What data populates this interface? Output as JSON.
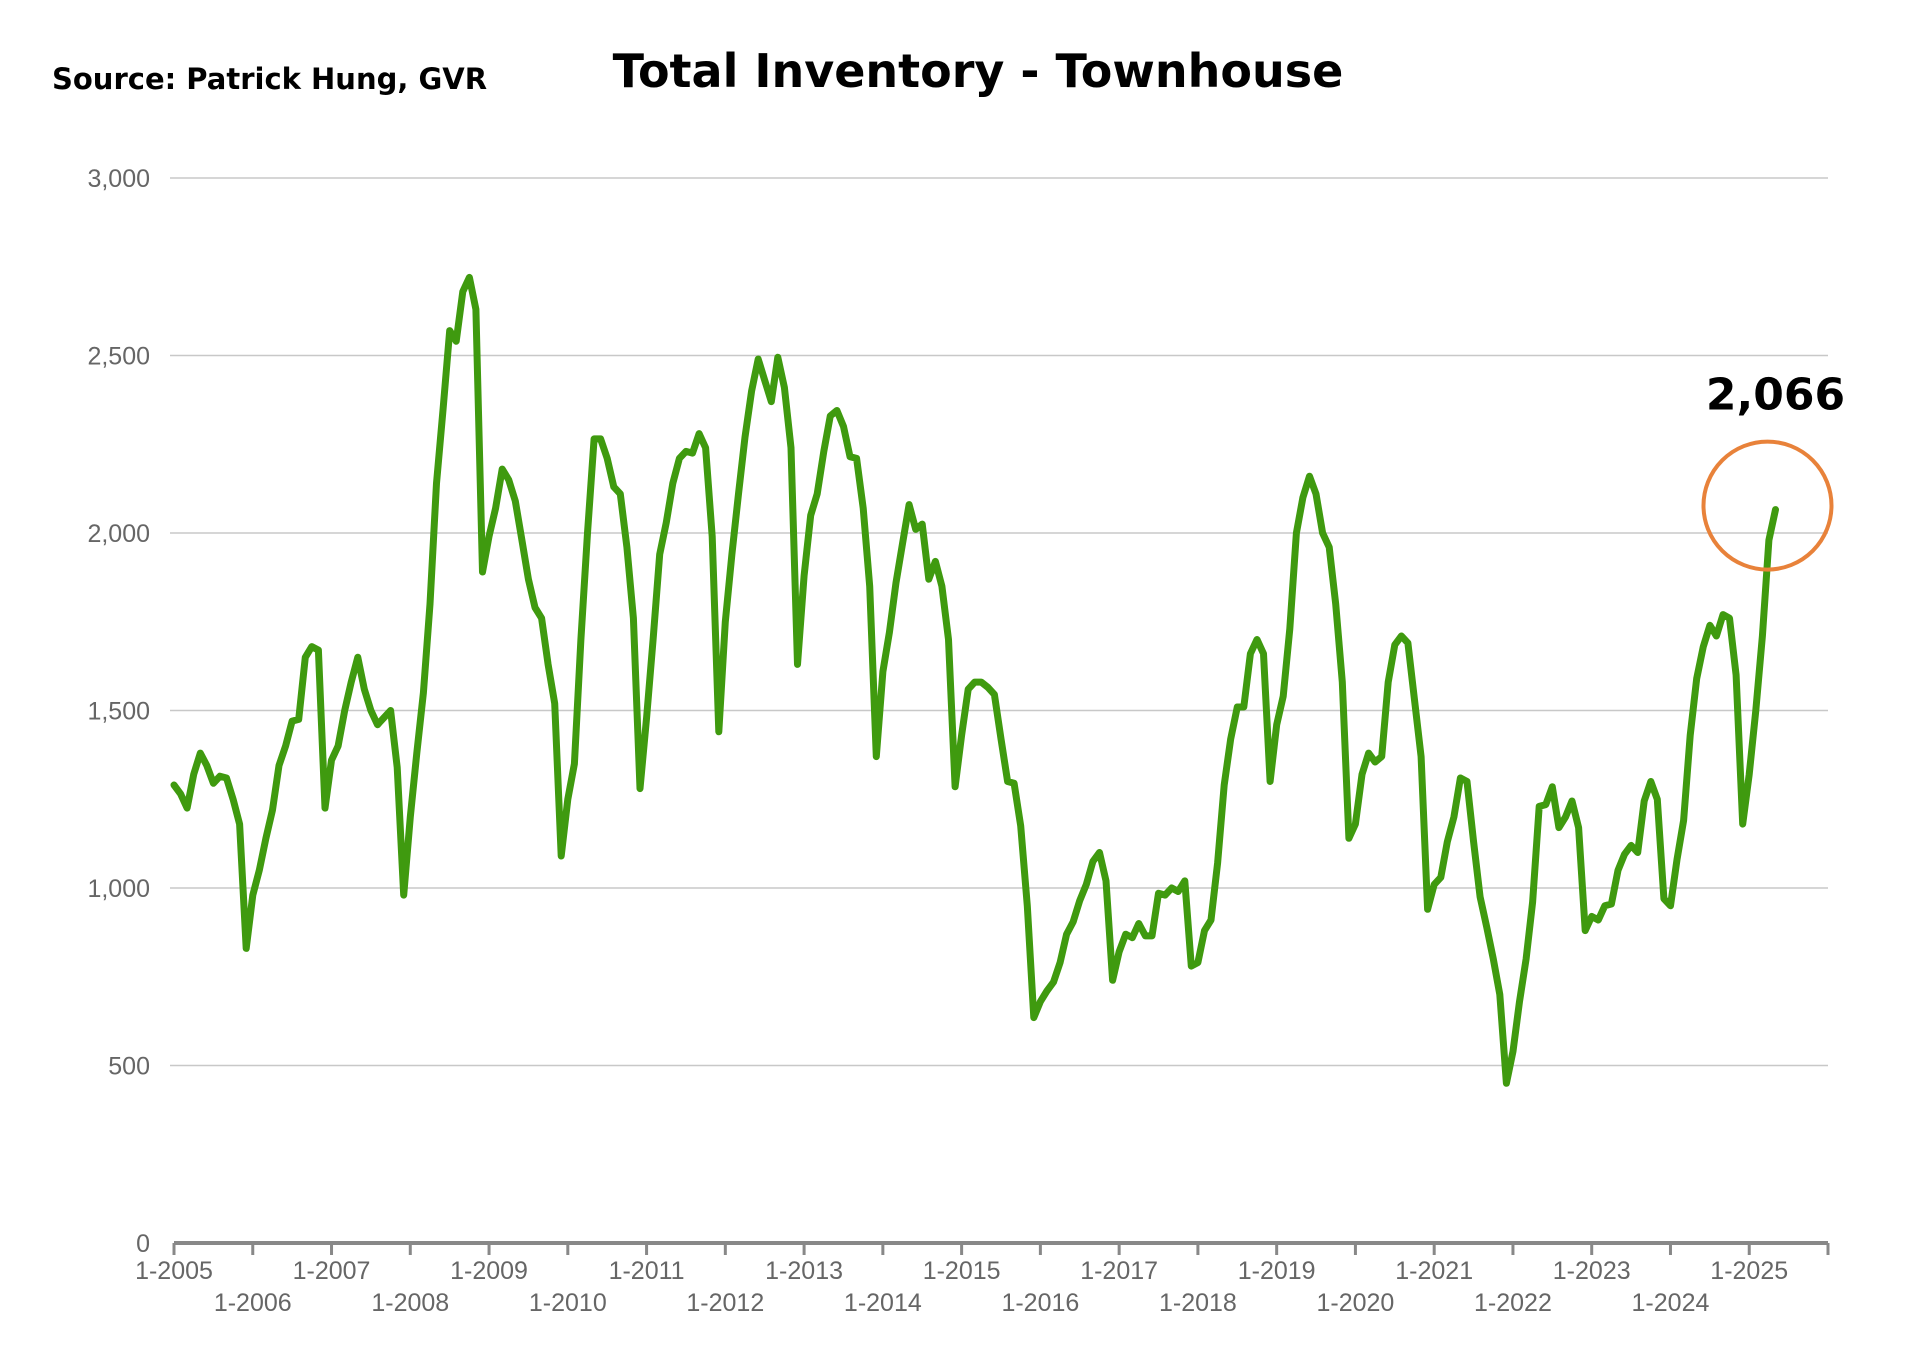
{
  "source_note": "Source:  Patrick Hung, GVR",
  "chart_data": {
    "type": "line",
    "title": "Total Inventory - Townhouse",
    "xlabel": "",
    "ylabel": "",
    "ylim": [
      0,
      3000
    ],
    "yticks": [
      0,
      500,
      1000,
      1500,
      2000,
      2500,
      3000
    ],
    "ytick_labels": [
      "0",
      "500",
      "1,000",
      "1,500",
      "2,000",
      "2,500",
      "3,000"
    ],
    "xtick_labels": [
      "1-2005",
      "1-2006",
      "1-2007",
      "1-2008",
      "1-2009",
      "1-2010",
      "1-2011",
      "1-2012",
      "1-2013",
      "1-2014",
      "1-2015",
      "1-2016",
      "1-2017",
      "1-2018",
      "1-2019",
      "1-2020",
      "1-2021",
      "1-2022",
      "1-2023",
      "1-2024",
      "1-2025"
    ],
    "grid": true,
    "line_color": "#3f9a0f",
    "highlight_color": "#e8823a",
    "series": [
      {
        "points": [
          [
            "2005-01",
            1290
          ],
          [
            "2005-02",
            1265
          ],
          [
            "2005-03",
            1225
          ],
          [
            "2005-04",
            1320
          ],
          [
            "2005-05",
            1380
          ],
          [
            "2005-06",
            1345
          ],
          [
            "2005-07",
            1295
          ],
          [
            "2005-08",
            1315
          ],
          [
            "2005-09",
            1310
          ],
          [
            "2005-10",
            1250
          ],
          [
            "2005-11",
            1180
          ],
          [
            "2005-12",
            830
          ],
          [
            "2006-01",
            980
          ],
          [
            "2006-02",
            1050
          ],
          [
            "2006-03",
            1140
          ],
          [
            "2006-04",
            1220
          ],
          [
            "2006-05",
            1345
          ],
          [
            "2006-06",
            1400
          ],
          [
            "2006-07",
            1470
          ],
          [
            "2006-08",
            1475
          ],
          [
            "2006-09",
            1650
          ],
          [
            "2006-10",
            1680
          ],
          [
            "2006-11",
            1670
          ],
          [
            "2006-12",
            1225
          ],
          [
            "2007-01",
            1360
          ],
          [
            "2007-02",
            1400
          ],
          [
            "2007-03",
            1500
          ],
          [
            "2007-04",
            1580
          ],
          [
            "2007-05",
            1650
          ],
          [
            "2007-06",
            1560
          ],
          [
            "2007-07",
            1500
          ],
          [
            "2007-08",
            1460
          ],
          [
            "2007-09",
            1480
          ],
          [
            "2007-10",
            1500
          ],
          [
            "2007-11",
            1340
          ],
          [
            "2007-12",
            980
          ],
          [
            "2008-01",
            1200
          ],
          [
            "2008-02",
            1380
          ],
          [
            "2008-03",
            1550
          ],
          [
            "2008-04",
            1800
          ],
          [
            "2008-05",
            2140
          ],
          [
            "2008-06",
            2350
          ],
          [
            "2008-07",
            2570
          ],
          [
            "2008-08",
            2540
          ],
          [
            "2008-09",
            2680
          ],
          [
            "2008-10",
            2720
          ],
          [
            "2008-11",
            2630
          ],
          [
            "2008-12",
            1890
          ],
          [
            "2009-01",
            1990
          ],
          [
            "2009-02",
            2070
          ],
          [
            "2009-03",
            2180
          ],
          [
            "2009-04",
            2150
          ],
          [
            "2009-05",
            2090
          ],
          [
            "2009-06",
            1980
          ],
          [
            "2009-07",
            1870
          ],
          [
            "2009-08",
            1790
          ],
          [
            "2009-09",
            1760
          ],
          [
            "2009-10",
            1630
          ],
          [
            "2009-11",
            1520
          ],
          [
            "2009-12",
            1090
          ],
          [
            "2010-01",
            1250
          ],
          [
            "2010-02",
            1350
          ],
          [
            "2010-03",
            1700
          ],
          [
            "2010-04",
            2000
          ],
          [
            "2010-05",
            2265
          ],
          [
            "2010-06",
            2265
          ],
          [
            "2010-07",
            2210
          ],
          [
            "2010-08",
            2130
          ],
          [
            "2010-09",
            2110
          ],
          [
            "2010-10",
            1960
          ],
          [
            "2010-11",
            1760
          ],
          [
            "2010-12",
            1280
          ],
          [
            "2011-01",
            1480
          ],
          [
            "2011-02",
            1700
          ],
          [
            "2011-03",
            1940
          ],
          [
            "2011-04",
            2030
          ],
          [
            "2011-05",
            2140
          ],
          [
            "2011-06",
            2210
          ],
          [
            "2011-07",
            2230
          ],
          [
            "2011-08",
            2225
          ],
          [
            "2011-09",
            2280
          ],
          [
            "2011-10",
            2240
          ],
          [
            "2011-11",
            1990
          ],
          [
            "2011-12",
            1440
          ],
          [
            "2012-01",
            1750
          ],
          [
            "2012-02",
            1940
          ],
          [
            "2012-03",
            2110
          ],
          [
            "2012-04",
            2270
          ],
          [
            "2012-05",
            2400
          ],
          [
            "2012-06",
            2490
          ],
          [
            "2012-07",
            2430
          ],
          [
            "2012-08",
            2370
          ],
          [
            "2012-09",
            2495
          ],
          [
            "2012-10",
            2410
          ],
          [
            "2012-11",
            2240
          ],
          [
            "2012-12",
            1630
          ],
          [
            "2013-01",
            1880
          ],
          [
            "2013-02",
            2050
          ],
          [
            "2013-03",
            2110
          ],
          [
            "2013-04",
            2230
          ],
          [
            "2013-05",
            2330
          ],
          [
            "2013-06",
            2345
          ],
          [
            "2013-07",
            2300
          ],
          [
            "2013-08",
            2215
          ],
          [
            "2013-09",
            2210
          ],
          [
            "2013-10",
            2070
          ],
          [
            "2013-11",
            1850
          ],
          [
            "2013-12",
            1370
          ],
          [
            "2014-01",
            1610
          ],
          [
            "2014-02",
            1720
          ],
          [
            "2014-03",
            1860
          ],
          [
            "2014-04",
            1970
          ],
          [
            "2014-05",
            2080
          ],
          [
            "2014-06",
            2010
          ],
          [
            "2014-07",
            2025
          ],
          [
            "2014-08",
            1870
          ],
          [
            "2014-09",
            1920
          ],
          [
            "2014-10",
            1850
          ],
          [
            "2014-11",
            1700
          ],
          [
            "2014-12",
            1285
          ],
          [
            "2015-01",
            1430
          ],
          [
            "2015-02",
            1560
          ],
          [
            "2015-03",
            1580
          ],
          [
            "2015-04",
            1580
          ],
          [
            "2015-05",
            1565
          ],
          [
            "2015-06",
            1545
          ],
          [
            "2015-07",
            1420
          ],
          [
            "2015-08",
            1300
          ],
          [
            "2015-09",
            1295
          ],
          [
            "2015-10",
            1175
          ],
          [
            "2015-11",
            950
          ],
          [
            "2015-12",
            635
          ],
          [
            "2016-01",
            680
          ],
          [
            "2016-02",
            710
          ],
          [
            "2016-03",
            735
          ],
          [
            "2016-04",
            790
          ],
          [
            "2016-05",
            870
          ],
          [
            "2016-06",
            905
          ],
          [
            "2016-07",
            965
          ],
          [
            "2016-08",
            1010
          ],
          [
            "2016-09",
            1075
          ],
          [
            "2016-10",
            1100
          ],
          [
            "2016-11",
            1020
          ],
          [
            "2016-12",
            740
          ],
          [
            "2017-01",
            820
          ],
          [
            "2017-02",
            870
          ],
          [
            "2017-03",
            860
          ],
          [
            "2017-04",
            900
          ],
          [
            "2017-05",
            865
          ],
          [
            "2017-06",
            865
          ],
          [
            "2017-07",
            985
          ],
          [
            "2017-08",
            980
          ],
          [
            "2017-09",
            1000
          ],
          [
            "2017-10",
            990
          ],
          [
            "2017-11",
            1020
          ],
          [
            "2017-12",
            780
          ],
          [
            "2018-01",
            790
          ],
          [
            "2018-02",
            880
          ],
          [
            "2018-03",
            910
          ],
          [
            "2018-04",
            1070
          ],
          [
            "2018-05",
            1290
          ],
          [
            "2018-06",
            1420
          ],
          [
            "2018-07",
            1510
          ],
          [
            "2018-08",
            1510
          ],
          [
            "2018-09",
            1660
          ],
          [
            "2018-10",
            1700
          ],
          [
            "2018-11",
            1660
          ],
          [
            "2018-12",
            1300
          ],
          [
            "2019-01",
            1460
          ],
          [
            "2019-02",
            1540
          ],
          [
            "2019-03",
            1730
          ],
          [
            "2019-04",
            2000
          ],
          [
            "2019-05",
            2100
          ],
          [
            "2019-06",
            2160
          ],
          [
            "2019-07",
            2110
          ],
          [
            "2019-08",
            2000
          ],
          [
            "2019-09",
            1960
          ],
          [
            "2019-10",
            1800
          ],
          [
            "2019-11",
            1580
          ],
          [
            "2019-12",
            1140
          ],
          [
            "2020-01",
            1180
          ],
          [
            "2020-02",
            1320
          ],
          [
            "2020-03",
            1380
          ],
          [
            "2020-04",
            1355
          ],
          [
            "2020-05",
            1370
          ],
          [
            "2020-06",
            1580
          ],
          [
            "2020-07",
            1685
          ],
          [
            "2020-08",
            1710
          ],
          [
            "2020-09",
            1690
          ],
          [
            "2020-10",
            1530
          ],
          [
            "2020-11",
            1370
          ],
          [
            "2020-12",
            940
          ],
          [
            "2021-01",
            1010
          ],
          [
            "2021-02",
            1030
          ],
          [
            "2021-03",
            1130
          ],
          [
            "2021-04",
            1200
          ],
          [
            "2021-05",
            1310
          ],
          [
            "2021-06",
            1300
          ],
          [
            "2021-07",
            1130
          ],
          [
            "2021-08",
            975
          ],
          [
            "2021-09",
            890
          ],
          [
            "2021-10",
            800
          ],
          [
            "2021-11",
            700
          ],
          [
            "2021-12",
            450
          ],
          [
            "2022-01",
            540
          ],
          [
            "2022-02",
            680
          ],
          [
            "2022-03",
            800
          ],
          [
            "2022-04",
            960
          ],
          [
            "2022-05",
            1230
          ],
          [
            "2022-06",
            1235
          ],
          [
            "2022-07",
            1285
          ],
          [
            "2022-08",
            1170
          ],
          [
            "2022-09",
            1200
          ],
          [
            "2022-10",
            1245
          ],
          [
            "2022-11",
            1170
          ],
          [
            "2022-12",
            880
          ],
          [
            "2023-01",
            920
          ],
          [
            "2023-02",
            910
          ],
          [
            "2023-03",
            950
          ],
          [
            "2023-04",
            955
          ],
          [
            "2023-05",
            1050
          ],
          [
            "2023-06",
            1095
          ],
          [
            "2023-07",
            1120
          ],
          [
            "2023-08",
            1100
          ],
          [
            "2023-09",
            1245
          ],
          [
            "2023-10",
            1300
          ],
          [
            "2023-11",
            1250
          ],
          [
            "2023-12",
            970
          ],
          [
            "2024-01",
            950
          ],
          [
            "2024-02",
            1080
          ],
          [
            "2024-03",
            1190
          ],
          [
            "2024-04",
            1430
          ],
          [
            "2024-05",
            1590
          ],
          [
            "2024-06",
            1680
          ],
          [
            "2024-07",
            1740
          ],
          [
            "2024-08",
            1710
          ],
          [
            "2024-09",
            1770
          ],
          [
            "2024-10",
            1760
          ],
          [
            "2024-11",
            1600
          ],
          [
            "2024-12",
            1180
          ],
          [
            "2025-01",
            1320
          ],
          [
            "2025-02",
            1500
          ],
          [
            "2025-03",
            1710
          ],
          [
            "2025-04",
            1980
          ],
          [
            "2025-05",
            2066
          ]
        ]
      }
    ],
    "annotation": {
      "text": "2,066",
      "x": "2025-05",
      "y": 2066,
      "marker": "circle"
    }
  }
}
